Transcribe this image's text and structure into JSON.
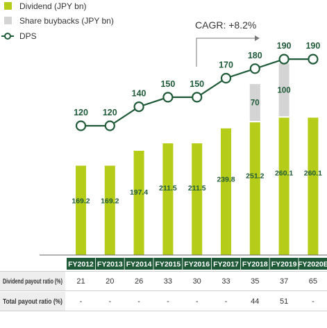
{
  "colors": {
    "dividend": "#b5cc18",
    "buyback": "#d4d4d4",
    "dps_line": "#1f5a38",
    "tick_bg": "#1f5a38",
    "text_value": "#1f5a38",
    "row_bg": "#eeeeee"
  },
  "legend": {
    "dividend_label": "Dividend (JPY bn)",
    "buyback_label": "Share buybacks (JPY bn)",
    "dps_label": "DPS"
  },
  "annotation": {
    "cagr": "CAGR: +8.2%"
  },
  "chart_data": {
    "type": "bar",
    "categories": [
      "FY2012",
      "FY2013",
      "FY2014",
      "FY2015",
      "FY2016",
      "FY2017",
      "FY2018",
      "FY2019",
      "FY2020E"
    ],
    "series": [
      {
        "name": "Dividend (JPY bn)",
        "kind": "stacked-bar",
        "values": [
          169.2,
          169.2,
          197.4,
          211.5,
          211.5,
          239.8,
          251.2,
          260.1,
          260.1
        ],
        "labels": [
          "169.2",
          "169.2",
          "197.4",
          "211.5",
          "211.5",
          "239.8",
          "251.2",
          "260.1",
          "260.1"
        ]
      },
      {
        "name": "Share buybacks (JPY bn)",
        "kind": "stacked-bar",
        "values": [
          null,
          null,
          null,
          null,
          null,
          null,
          70,
          100,
          null
        ],
        "labels": [
          "",
          "",
          "",
          "",
          "",
          "",
          "70",
          "100",
          ""
        ]
      },
      {
        "name": "DPS",
        "kind": "line",
        "values": [
          120,
          120,
          140,
          150,
          150,
          170,
          180,
          190,
          190
        ],
        "labels": [
          "120",
          "120",
          "140",
          "150",
          "150",
          "170",
          "180",
          "190",
          "190"
        ]
      }
    ]
  },
  "table": {
    "rows": [
      {
        "label": "Dividend payout ratio (%)",
        "values": [
          "21",
          "20",
          "26",
          "33",
          "30",
          "33",
          "35",
          "37",
          "65"
        ]
      },
      {
        "label": "Total payout ratio (%)",
        "values": [
          "-",
          "-",
          "-",
          "-",
          "-",
          "-",
          "44",
          "51",
          "-"
        ]
      }
    ]
  }
}
